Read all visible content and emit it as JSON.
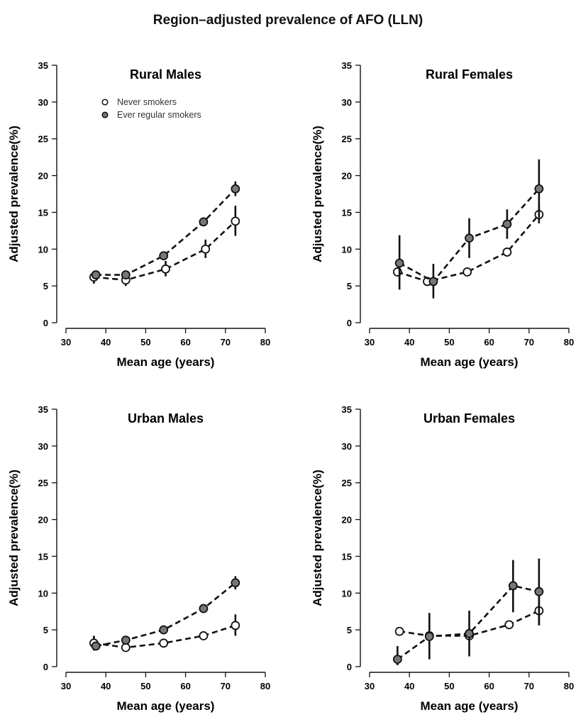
{
  "figure_title": "Region–adjusted prevalence of AFO (LLN)",
  "legend": {
    "never_label": "Never smokers",
    "ever_label": "Ever regular smokers",
    "placement": "top-left"
  },
  "colors": {
    "line": "#111111",
    "ever_fill": "#777777",
    "never_fill": "#ffffff"
  },
  "chart_data": [
    {
      "type": "line",
      "title": "Rural Males",
      "xlabel": "Mean age (years)",
      "ylabel": "Adjusted prevalence(%)",
      "xlim": [
        30,
        80
      ],
      "ylim": [
        0,
        35
      ],
      "xticks": [
        30,
        40,
        50,
        60,
        70,
        80
      ],
      "yticks": [
        0,
        5,
        10,
        15,
        20,
        25,
        30,
        35
      ],
      "series": [
        {
          "name": "Never smokers",
          "marker": "open",
          "x": [
            37,
            45,
            55,
            65,
            72.5
          ],
          "y": [
            6.2,
            5.8,
            7.3,
            10.0,
            13.8
          ],
          "lo": [
            5.3,
            5.0,
            6.3,
            8.8,
            11.8
          ],
          "hi": [
            7.0,
            6.7,
            8.4,
            11.3,
            15.9
          ]
        },
        {
          "name": "Ever regular smokers",
          "marker": "filled",
          "x": [
            37.5,
            45,
            54.5,
            64.5,
            72.5
          ],
          "y": [
            6.5,
            6.5,
            9.1,
            13.7,
            18.2
          ],
          "lo": [
            6.0,
            6.0,
            8.6,
            13.1,
            17.2
          ],
          "hi": [
            7.0,
            7.0,
            9.6,
            14.3,
            19.2
          ]
        }
      ]
    },
    {
      "type": "line",
      "title": "Rural Females",
      "xlabel": "Mean age (years)",
      "ylabel": "Adjusted prevalence(%)",
      "xlim": [
        30,
        80
      ],
      "ylim": [
        0,
        35
      ],
      "xticks": [
        30,
        40,
        50,
        60,
        70,
        80
      ],
      "yticks": [
        0,
        5,
        10,
        15,
        20,
        25,
        30,
        35
      ],
      "series": [
        {
          "name": "Never smokers",
          "marker": "open",
          "x": [
            37,
            44.5,
            54.5,
            64.5,
            72.5
          ],
          "y": [
            6.9,
            5.6,
            6.9,
            9.6,
            14.7
          ],
          "lo": [
            6.3,
            5.1,
            6.4,
            9.1,
            13.5
          ],
          "hi": [
            7.5,
            6.1,
            7.4,
            10.1,
            15.9
          ]
        },
        {
          "name": "Ever regular smokers",
          "marker": "filled",
          "x": [
            37.5,
            46,
            55,
            64.5,
            72.5
          ],
          "y": [
            8.1,
            5.6,
            11.5,
            13.4,
            18.2
          ],
          "lo": [
            4.5,
            3.3,
            8.8,
            11.4,
            14.3
          ],
          "hi": [
            11.9,
            8.0,
            14.2,
            15.4,
            22.2
          ]
        }
      ]
    },
    {
      "type": "line",
      "title": "Urban Males",
      "xlabel": "Mean age (years)",
      "ylabel": "Adjusted prevalence(%)",
      "xlim": [
        30,
        80
      ],
      "ylim": [
        0,
        35
      ],
      "xticks": [
        30,
        40,
        50,
        60,
        70,
        80
      ],
      "yticks": [
        0,
        5,
        10,
        15,
        20,
        25,
        30,
        35
      ],
      "series": [
        {
          "name": "Never smokers",
          "marker": "open",
          "x": [
            37,
            45,
            54.5,
            64.5,
            72.5
          ],
          "y": [
            3.2,
            2.6,
            3.2,
            4.2,
            5.6
          ],
          "lo": [
            2.2,
            2.1,
            2.7,
            3.6,
            4.2
          ],
          "hi": [
            4.2,
            3.1,
            3.7,
            4.8,
            7.1
          ]
        },
        {
          "name": "Ever regular smokers",
          "marker": "filled",
          "x": [
            37.5,
            45,
            54.5,
            64.5,
            72.5
          ],
          "y": [
            2.8,
            3.6,
            5.0,
            7.9,
            11.4
          ],
          "lo": [
            2.3,
            3.1,
            4.5,
            7.4,
            10.5
          ],
          "hi": [
            3.3,
            4.1,
            5.5,
            8.4,
            12.3
          ]
        }
      ]
    },
    {
      "type": "line",
      "title": "Urban Females",
      "xlabel": "Mean age (years)",
      "ylabel": "Adjusted prevalence(%)",
      "xlim": [
        30,
        80
      ],
      "ylim": [
        0,
        35
      ],
      "xticks": [
        30,
        40,
        50,
        60,
        70,
        80
      ],
      "yticks": [
        0,
        5,
        10,
        15,
        20,
        25,
        30,
        35
      ],
      "series": [
        {
          "name": "Never smokers",
          "marker": "open",
          "x": [
            37.5,
            45,
            55,
            65,
            72.5
          ],
          "y": [
            4.8,
            4.2,
            4.2,
            5.7,
            7.6
          ],
          "lo": [
            4.3,
            3.7,
            3.7,
            5.2,
            5.6
          ],
          "hi": [
            5.3,
            4.7,
            4.7,
            6.2,
            9.6
          ]
        },
        {
          "name": "Ever regular smokers",
          "marker": "filled",
          "x": [
            37,
            45,
            55,
            66,
            72.5
          ],
          "y": [
            1.0,
            4.1,
            4.5,
            11.0,
            10.2
          ],
          "lo": [
            0.2,
            1.0,
            1.4,
            7.4,
            5.7
          ],
          "hi": [
            2.8,
            7.3,
            7.6,
            14.5,
            14.7
          ]
        }
      ]
    }
  ]
}
